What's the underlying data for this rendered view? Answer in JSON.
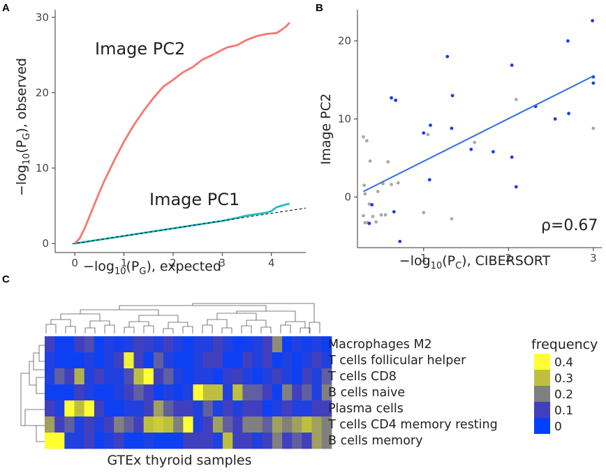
{
  "panels": {
    "a": {
      "letter": "A",
      "ylabel_pre": "−log",
      "ylabel_sub1": "10",
      "ylabel_mid": "(P",
      "ylabel_sub2": "G",
      "ylabel_post": "), observed",
      "xlabel_pre": "−log",
      "xlabel_sub1": "10",
      "xlabel_mid": "(P",
      "xlabel_sub2": "G",
      "xlabel_post": "), expected"
    },
    "b": {
      "letter": "B",
      "ylabel": "Image PC2",
      "xlabel_pre": "−log",
      "xlabel_sub1": "10",
      "xlabel_mid": "(P",
      "xlabel_sub2": "C",
      "xlabel_post": "), CIBERSORT"
    },
    "c": {
      "letter": "C",
      "xlabel": "GTEx thyroid samples",
      "legend_title": "frequency"
    }
  },
  "chart_data": [
    {
      "type": "line",
      "panel": "A",
      "xlim": [
        -0.4,
        4.7
      ],
      "ylim": [
        -1.2,
        31
      ],
      "xticks": [
        "0",
        "1",
        "2",
        "3",
        "4"
      ],
      "yticks": [
        "0",
        "10",
        "20",
        "30"
      ],
      "grid": false,
      "series": [
        {
          "name": "Image PC2",
          "color": "#f8766d",
          "x": [
            0,
            0.1,
            0.2,
            0.3,
            0.4,
            0.5,
            0.6,
            0.8,
            1.0,
            1.2,
            1.4,
            1.6,
            1.8,
            2.0,
            2.2,
            2.4,
            2.6,
            2.8,
            3.0,
            3.1,
            3.3,
            3.5,
            3.7,
            3.9,
            4.1,
            4.2,
            4.3,
            4.37
          ],
          "y": [
            0,
            0.7,
            2.0,
            3.6,
            5.2,
            6.8,
            8.3,
            11.0,
            13.5,
            15.7,
            17.6,
            19.3,
            20.8,
            21.7,
            22.7,
            23.4,
            24.4,
            25.0,
            25.7,
            26.0,
            26.3,
            27.0,
            27.5,
            27.8,
            27.9,
            28.3,
            28.8,
            29.3
          ]
        },
        {
          "name": "Image PC1",
          "color": "#1fbfc4",
          "x": [
            0,
            0.5,
            1.0,
            1.5,
            2.0,
            2.5,
            3.0,
            3.3,
            3.5,
            3.7,
            3.9,
            4.0,
            4.1,
            4.2,
            4.37
          ],
          "y": [
            0,
            0.5,
            1.0,
            1.5,
            2.0,
            2.5,
            3.0,
            3.4,
            3.7,
            3.9,
            4.1,
            4.3,
            4.8,
            5.0,
            5.3
          ]
        },
        {
          "name": "",
          "style": "dashed",
          "color": "#000000",
          "x": [
            -0.05,
            4.7
          ],
          "y": [
            -0.05,
            4.7
          ]
        }
      ],
      "annotations": [
        "Image PC2",
        "Image PC1"
      ]
    },
    {
      "type": "scatter",
      "panel": "B",
      "xlim": [
        0.22,
        3.1
      ],
      "ylim": [
        -6.5,
        24
      ],
      "xticks": [
        "1",
        "2",
        "3"
      ],
      "yticks": [
        "0",
        "10",
        "20"
      ],
      "grid": false,
      "annotation": "ρ=0.67",
      "series": [
        {
          "name": "",
          "color": "#1a3de6",
          "points": [
            [
              0.36,
              -3.4
            ],
            [
              0.39,
              -1.0
            ],
            [
              0.62,
              12.7
            ],
            [
              0.67,
              12.4
            ],
            [
              0.65,
              -1.9
            ],
            [
              0.72,
              -5.7
            ],
            [
              1.0,
              8.2
            ],
            [
              1.07,
              2.2
            ],
            [
              1.08,
              9.2
            ],
            [
              1.28,
              18.0
            ],
            [
              1.34,
              13.0
            ],
            [
              1.33,
              8.8
            ],
            [
              1.56,
              6.1
            ],
            [
              1.82,
              5.8
            ],
            [
              2.04,
              16.9
            ],
            [
              2.04,
              5.1
            ],
            [
              2.09,
              1.3
            ],
            [
              2.32,
              11.6
            ],
            [
              2.55,
              10.0
            ],
            [
              2.7,
              20.0
            ],
            [
              2.71,
              10.7
            ],
            [
              2.99,
              22.6
            ],
            [
              3.0,
              15.4
            ],
            [
              3.0,
              14.6
            ]
          ]
        },
        {
          "name": "",
          "color": "#a9a9a9",
          "points": [
            [
              0.29,
              7.7
            ],
            [
              0.33,
              7.2
            ],
            [
              0.37,
              4.6
            ],
            [
              0.3,
              1.5
            ],
            [
              0.31,
              0.4
            ],
            [
              0.29,
              -2.4
            ],
            [
              0.31,
              -3.3
            ],
            [
              0.34,
              -3.3
            ],
            [
              0.36,
              -0.9
            ],
            [
              0.4,
              -2.5
            ],
            [
              0.44,
              -3.2
            ],
            [
              0.46,
              0.7
            ],
            [
              0.5,
              -2.3
            ],
            [
              0.52,
              1.7
            ],
            [
              0.55,
              -2.3
            ],
            [
              0.58,
              4.5
            ],
            [
              0.62,
              1.6
            ],
            [
              0.7,
              1.8
            ],
            [
              1.0,
              -2.0
            ],
            [
              1.05,
              8.0
            ],
            [
              1.33,
              -2.8
            ],
            [
              1.6,
              7.0
            ],
            [
              2.09,
              12.5
            ],
            [
              3.0,
              8.8
            ]
          ]
        }
      ],
      "regression_line": {
        "color": "#2f6ee0",
        "x": [
          0.29,
          3.0
        ],
        "y": [
          0.7,
          15.5
        ]
      }
    },
    {
      "type": "heatmap",
      "panel": "C",
      "rows": [
        "Macrophages M2",
        "T cells follicular helper",
        "T cells CD8",
        "B cells naive",
        "Plasma cells",
        "T cells CD4 memory resting",
        "B cells memory"
      ],
      "colorbar": {
        "title": "frequency",
        "ticks": [
          "0.4",
          "0.3",
          "0.2",
          "0.1",
          "0"
        ],
        "colors": [
          "#ffff33",
          "#bfbf3f",
          "#808080",
          "#4040bf",
          "#0040ff"
        ]
      },
      "values": [
        [
          0.1,
          0.02,
          0.02,
          0.1,
          0.12,
          0.02,
          0.05,
          0.03,
          0.05,
          0.1,
          0.08,
          0.05,
          0.1,
          0.05,
          0.02,
          0.05,
          0.05,
          0.1,
          0.05,
          0.02,
          0.03,
          0.05,
          0.1,
          0.22,
          0.02,
          0.05,
          0.03,
          0.05,
          0.02
        ],
        [
          0.05,
          0.02,
          0.02,
          0.02,
          0.05,
          0.02,
          0.05,
          0.1,
          0.38,
          0.1,
          0.02,
          0.15,
          0.05,
          0.02,
          0.02,
          0.05,
          0.1,
          0.1,
          0.02,
          0.02,
          0.1,
          0.05,
          0.1,
          0.02,
          0.05,
          0.02,
          0.05,
          0.1,
          0.05
        ],
        [
          0.05,
          0.15,
          0.1,
          0.28,
          0.05,
          0.1,
          0.05,
          0.05,
          0.12,
          0.3,
          0.4,
          0.1,
          0.15,
          0.05,
          0.02,
          0.05,
          0.05,
          0.02,
          0.08,
          0.1,
          0.05,
          0.02,
          0.05,
          0.1,
          0.05,
          0.02,
          0.1,
          0.05,
          0.15
        ],
        [
          0.02,
          0.02,
          0.02,
          0.1,
          0.05,
          0.02,
          0.02,
          0.05,
          0.1,
          0.15,
          0.1,
          0.02,
          0.05,
          0.02,
          0.05,
          0.4,
          0.3,
          0.3,
          0.05,
          0.3,
          0.15,
          0.15,
          0.1,
          0.02,
          0.2,
          0.1,
          0.15,
          0.05,
          0.2
        ],
        [
          0.1,
          0.05,
          0.4,
          0.3,
          0.4,
          0.1,
          0.02,
          0.02,
          0.05,
          0.05,
          0.1,
          0.25,
          0.15,
          0.1,
          0.1,
          0.05,
          0.15,
          0.05,
          0.1,
          0.05,
          0.1,
          0.1,
          0.02,
          0.05,
          0.1,
          0.05,
          0.05,
          0.1,
          0.1
        ],
        [
          0.25,
          0.1,
          0.15,
          0.05,
          0.1,
          0.05,
          0.1,
          0.2,
          0.15,
          0.1,
          0.3,
          0.32,
          0.3,
          0.2,
          0.4,
          0.05,
          0.1,
          0.25,
          0.15,
          0.1,
          0.2,
          0.2,
          0.15,
          0.25,
          0.2,
          0.25,
          0.3,
          0.25,
          0.2
        ],
        [
          0.4,
          0.4,
          0.05,
          0.05,
          0.1,
          0.02,
          0.05,
          0.1,
          0.02,
          0.02,
          0.05,
          0.02,
          0.02,
          0.02,
          0.1,
          0.1,
          0.1,
          0.05,
          0.3,
          0.1,
          0.1,
          0.05,
          0.1,
          0.2,
          0.1,
          0.15,
          0.1,
          0.25,
          0.2
        ]
      ]
    }
  ]
}
